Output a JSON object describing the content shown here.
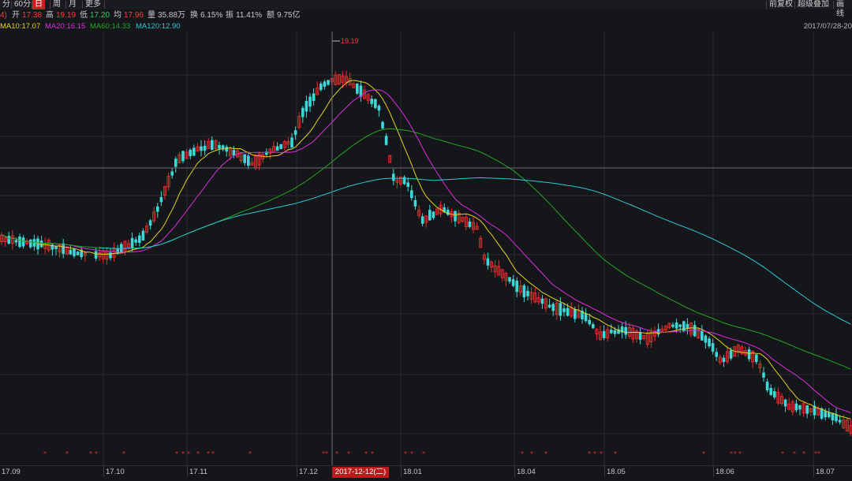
{
  "toolbar": {
    "tabs": [
      {
        "label": "分"
      },
      {
        "label": "60分"
      },
      {
        "label": "日",
        "active": true
      },
      {
        "label": "周"
      },
      {
        "label": "月"
      },
      {
        "label": "更多"
      }
    ],
    "right_buttons": [
      "前复权",
      "超级叠加",
      "画线"
    ]
  },
  "quote": {
    "prefix": "4)",
    "open_label": "开",
    "open": "17.38",
    "high_label": "高",
    "high": "19.19",
    "low_label": "低",
    "low": "17.20",
    "avg_label": "均",
    "avg": "17.96",
    "volume_label": "量",
    "volume": "35.88万",
    "turnover_label": "换",
    "turnover": "6.15%",
    "amplitude_label": "振",
    "amplitude": "11.41%",
    "amount_label": "额",
    "amount": "9.75亿"
  },
  "ma_legend": [
    {
      "label": "MA10:17.07",
      "color": "#e8d21c"
    },
    {
      "label": "MA20:16.15",
      "color": "#e02be0"
    },
    {
      "label": "MA60:14.33",
      "color": "#22a822"
    },
    {
      "label": "MA120:12.90",
      "color": "#2ec8d8"
    }
  ],
  "date_range": "2017/07/28-20",
  "colors": {
    "up": "#e62e2e",
    "down": "#3fd8d8",
    "background": "#15161a",
    "grid": "#2a2b30"
  },
  "chart_data": {
    "type": "candlestick",
    "high_marker": "19.19",
    "x_axis_labels": [
      "17.09",
      "17.10",
      "17.11",
      "17.12",
      "18.01",
      "18.04",
      "18.05",
      "18.06",
      "18.07"
    ],
    "cursor_date": "2017-12-12(二)",
    "ma_series_names": [
      "MA10",
      "MA20",
      "MA60",
      "MA120"
    ]
  }
}
